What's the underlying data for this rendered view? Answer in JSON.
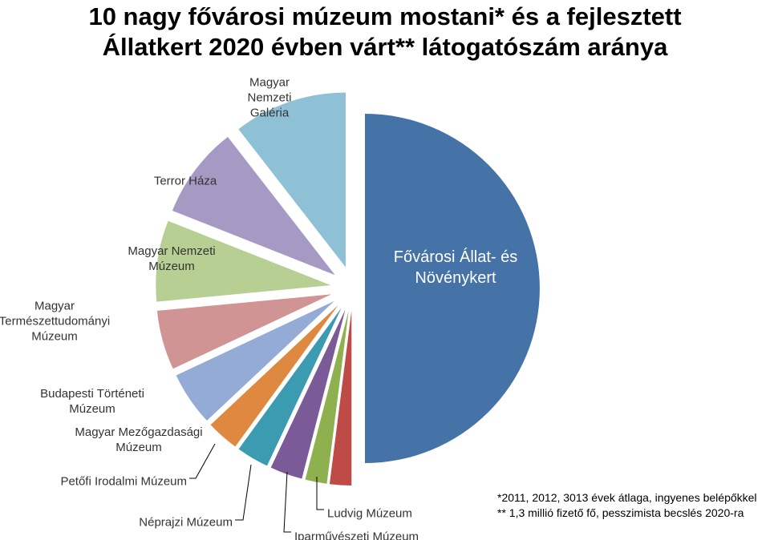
{
  "chart_data": {
    "type": "pie",
    "title_lines": [
      "10 nagy fővárosi múzeum mostani* és a fejlesztett",
      "Állatkert 2020 évben várt** látogatószám aránya"
    ],
    "slices": [
      {
        "label_lines": [
          "Fővárosi Állat- és",
          "Növénykert"
        ],
        "value": 50.0,
        "color": "#4572a7"
      },
      {
        "label_lines": [
          "Ludvig Múzeum"
        ],
        "value": 2.0,
        "color": "#be4b48"
      },
      {
        "label_lines": [
          "Iparművészeti Múzeum"
        ],
        "value": 2.0,
        "color": "#8fb04f"
      },
      {
        "label_lines": [
          "Néprajzi Múzeum"
        ],
        "value": 3.0,
        "color": "#7a5b98"
      },
      {
        "label_lines": [
          "Petőfi Irodalmi Múzeum"
        ],
        "value": 3.0,
        "color": "#3b9bb0"
      },
      {
        "label_lines": [
          "Magyar Mezőgazdasági",
          "Múzeum"
        ],
        "value": 3.0,
        "color": "#de8840"
      },
      {
        "label_lines": [
          "Budapesti Történeti",
          "Múzeum"
        ],
        "value": 5.0,
        "color": "#94abd6"
      },
      {
        "label_lines": [
          "Magyar",
          "Természettudományi",
          "Múzeum"
        ],
        "value": 5.5,
        "color": "#d19494"
      },
      {
        "label_lines": [
          "Magyar Nemzeti",
          "Múzeum"
        ],
        "value": 7.5,
        "color": "#b8cf94"
      },
      {
        "label_lines": [
          "Terror Háza"
        ],
        "value": 8.5,
        "color": "#a699c3"
      },
      {
        "label_lines": [
          "Magyar",
          "Nemzeti",
          "Galéria"
        ],
        "value": 10.5,
        "color": "#8ec1d6"
      }
    ]
  },
  "footnotes": [
    "*2011, 2012, 3013 évek átlaga, ingyenes belépőkkel",
    "** 1,3 millió  fizető fő, pesszimista becslés 2020-ra"
  ],
  "colors": {
    "inside_label_main": "#ffffff",
    "inside_label_small": "#333333",
    "outside_label": "#333333",
    "leader_line": "#000000"
  }
}
